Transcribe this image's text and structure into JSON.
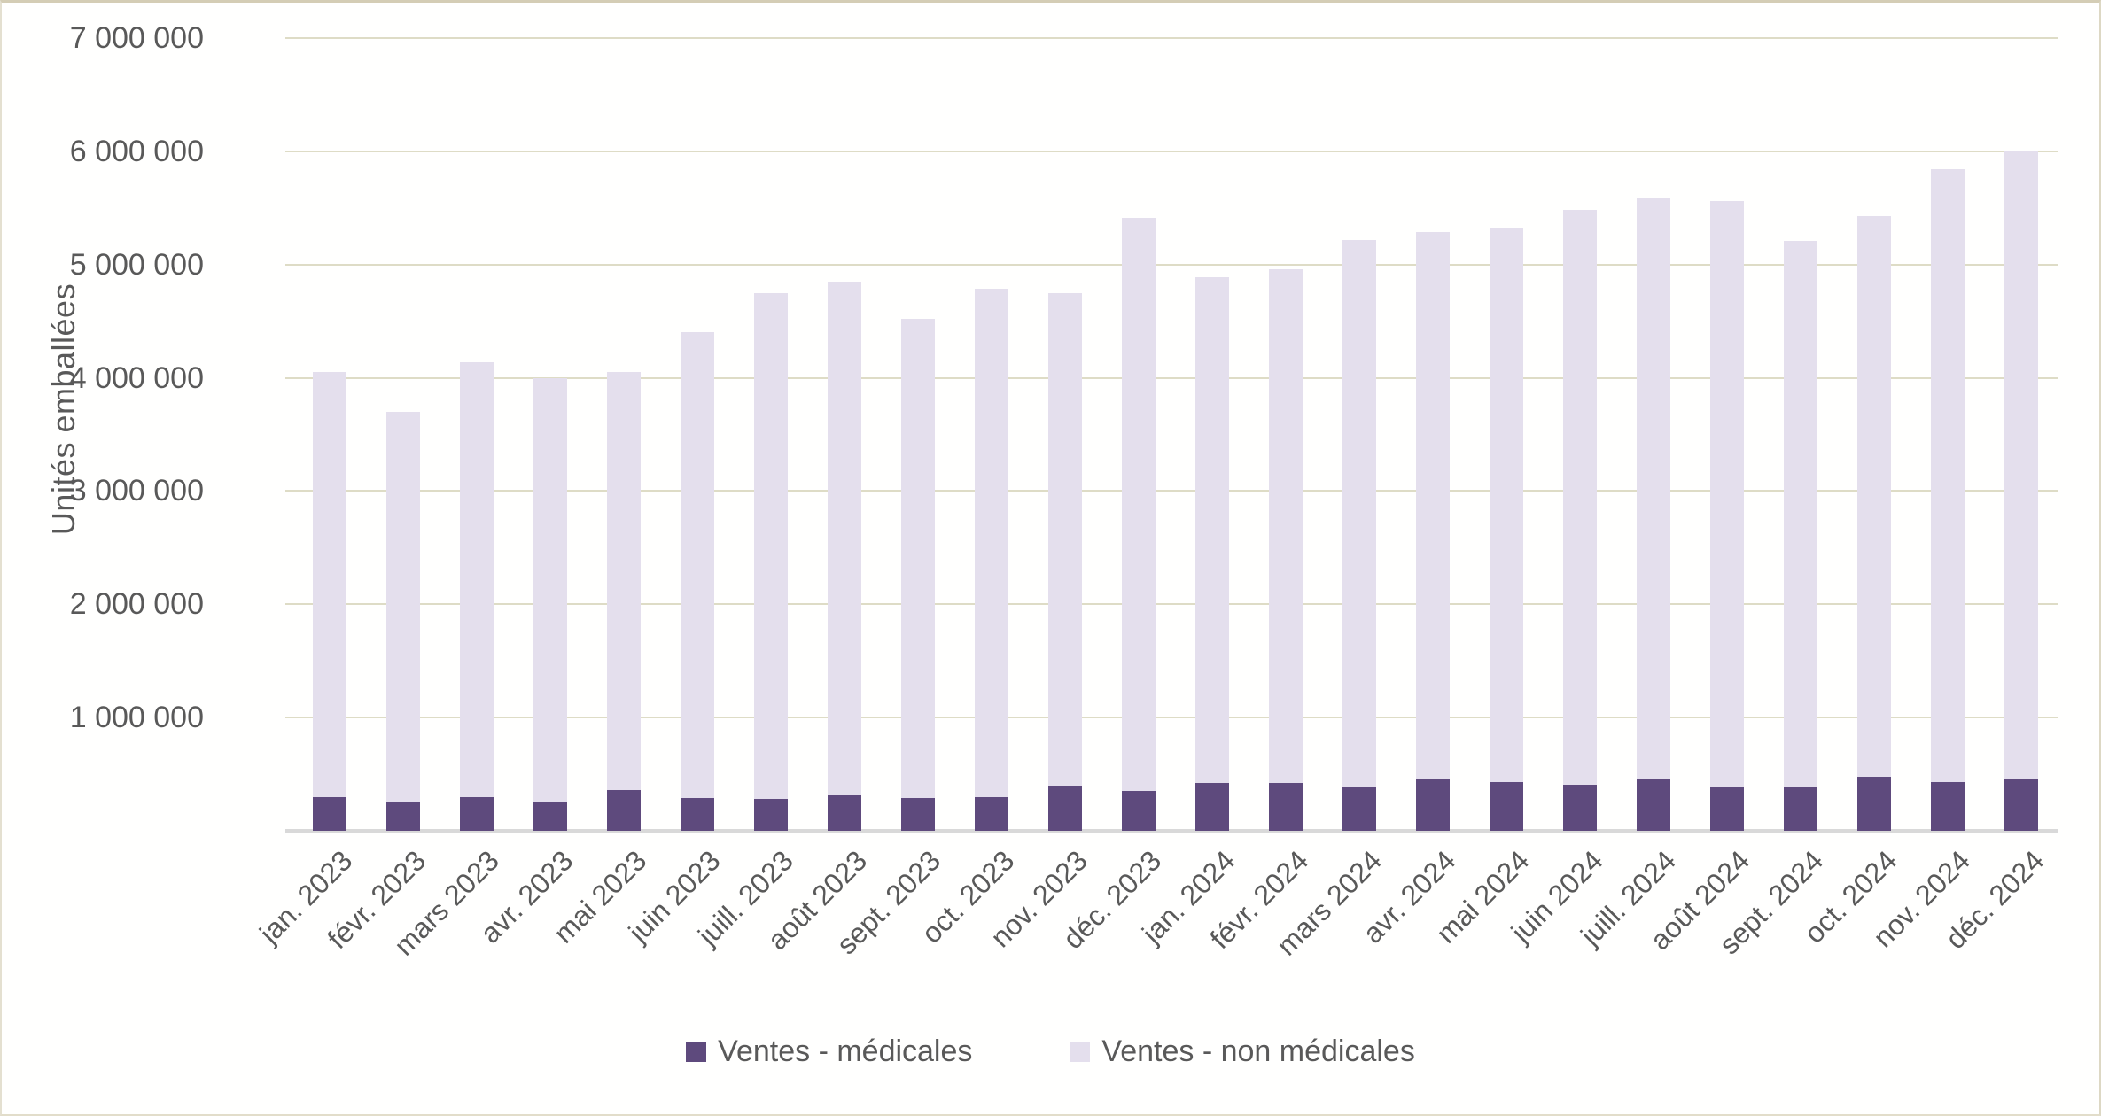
{
  "chart_data": {
    "type": "bar",
    "stacked": true,
    "title": "",
    "xlabel": "",
    "ylabel": "Unités emballées",
    "ylim": [
      0,
      7000000
    ],
    "ytick_step": 1000000,
    "ytick_labels_top_to_bottom": [
      "7 000 000",
      "6 000 000",
      "5 000 000",
      "4 000 000",
      "3 000 000",
      "2 000 000",
      "1 000 000"
    ],
    "grid": "horizontal",
    "legend_position": "bottom-center",
    "categories": [
      "jan. 2023",
      "févr. 2023",
      "mars 2023",
      "avr. 2023",
      "mai 2023",
      "juin 2023",
      "juill. 2023",
      "août 2023",
      "sept. 2023",
      "oct. 2023",
      "nov. 2023",
      "déc. 2023",
      "jan. 2024",
      "févr. 2024",
      "mars 2024",
      "avr. 2024",
      "mai 2024",
      "juin 2024",
      "juill. 2024",
      "août 2024",
      "sept. 2024",
      "oct. 2024",
      "nov. 2024",
      "déc. 2024"
    ],
    "series": [
      {
        "name": "Ventes - médicales",
        "color": "#5E4A7D",
        "values": [
          300000,
          250000,
          300000,
          250000,
          360000,
          290000,
          280000,
          310000,
          290000,
          300000,
          400000,
          350000,
          420000,
          420000,
          390000,
          460000,
          430000,
          410000,
          460000,
          380000,
          390000,
          480000,
          430000,
          450000
        ]
      },
      {
        "name": "Ventes - non médicales",
        "color": "#E4DFED",
        "values": [
          3750000,
          3450000,
          3840000,
          3750000,
          3690000,
          4110000,
          4470000,
          4540000,
          4230000,
          4490000,
          4350000,
          5060000,
          4470000,
          4540000,
          4830000,
          4830000,
          4900000,
          5070000,
          5130000,
          5180000,
          4820000,
          4950000,
          5410000,
          5550000
        ]
      }
    ],
    "totals": [
      4050000,
      3700000,
      4140000,
      4000000,
      4050000,
      4400000,
      4750000,
      4850000,
      4520000,
      4790000,
      4750000,
      5410000,
      4890000,
      4960000,
      5220000,
      5290000,
      5330000,
      5480000,
      5590000,
      5560000,
      5210000,
      5430000,
      5840000,
      6000000
    ]
  },
  "colors": {
    "gridline": "#DEDCC6",
    "axis_line": "#D9D9D9",
    "text": "#595959",
    "background": "#FFFFFE",
    "frame_border": "#D4CDB5"
  },
  "legend": {
    "items": [
      {
        "label": "Ventes - médicales",
        "swatch": "medicales-swatch"
      },
      {
        "label": "Ventes - non médicales",
        "swatch": "non-medicales-swatch"
      }
    ]
  }
}
